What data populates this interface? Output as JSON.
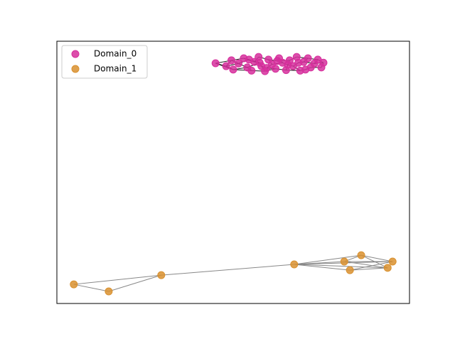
{
  "chart_data": {
    "type": "network",
    "xlim": [
      0,
      1
    ],
    "ylim": [
      0,
      1
    ],
    "legend": "upper left",
    "series": [
      {
        "name": "Domain_0",
        "color": "#d62f9c",
        "edge_color": "#000000",
        "x": [
          0.45,
          0.48,
          0.495,
          0.5,
          0.515,
          0.53,
          0.54,
          0.552,
          0.56,
          0.572,
          0.58,
          0.59,
          0.6,
          0.61,
          0.62,
          0.63,
          0.64,
          0.65,
          0.66,
          0.67,
          0.68,
          0.69,
          0.7,
          0.712,
          0.72,
          0.73,
          0.74,
          0.75,
          0.756,
          0.545,
          0.595,
          0.655,
          0.705,
          0.625,
          0.575,
          0.685
        ],
        "values": [
          0.916,
          0.905,
          0.927,
          0.892,
          0.915,
          0.935,
          0.9,
          0.888,
          0.921,
          0.94,
          0.905,
          0.886,
          0.93,
          0.912,
          0.895,
          0.935,
          0.918,
          0.89,
          0.927,
          0.905,
          0.94,
          0.888,
          0.921,
          0.935,
          0.9,
          0.915,
          0.93,
          0.9,
          0.918,
          0.93,
          0.898,
          0.91,
          0.892,
          0.925,
          0.918,
          0.918
        ],
        "edges": [
          [
            0,
            1
          ],
          [
            0,
            2
          ],
          [
            0,
            3
          ],
          [
            1,
            2
          ],
          [
            1,
            3
          ],
          [
            1,
            4
          ],
          [
            2,
            4
          ],
          [
            2,
            5
          ],
          [
            3,
            6
          ],
          [
            3,
            7
          ],
          [
            4,
            6
          ],
          [
            4,
            29
          ],
          [
            5,
            29
          ],
          [
            5,
            8
          ],
          [
            6,
            7
          ],
          [
            6,
            34
          ],
          [
            7,
            11
          ],
          [
            8,
            9
          ],
          [
            8,
            34
          ],
          [
            9,
            12
          ],
          [
            10,
            11
          ],
          [
            10,
            30
          ],
          [
            11,
            14
          ],
          [
            12,
            33
          ],
          [
            12,
            13
          ],
          [
            13,
            16
          ],
          [
            14,
            17
          ],
          [
            15,
            16
          ],
          [
            15,
            33
          ],
          [
            16,
            31
          ],
          [
            17,
            21
          ],
          [
            18,
            20
          ],
          [
            18,
            31
          ],
          [
            19,
            35
          ],
          [
            19,
            21
          ],
          [
            20,
            23
          ],
          [
            21,
            32
          ],
          [
            22,
            35
          ],
          [
            22,
            23
          ],
          [
            24,
            27
          ],
          [
            24,
            32
          ],
          [
            25,
            26
          ],
          [
            25,
            28
          ],
          [
            26,
            28
          ],
          [
            27,
            28
          ],
          [
            29,
            34
          ],
          [
            30,
            14
          ],
          [
            31,
            19
          ],
          [
            33,
            18
          ],
          [
            35,
            22
          ],
          [
            23,
            26
          ],
          [
            13,
            30
          ],
          [
            10,
            34
          ],
          [
            17,
            31
          ],
          [
            22,
            25
          ]
        ]
      },
      {
        "name": "Domain_1",
        "color": "#d9912f",
        "edge_color": "#888888",
        "x": [
          0.048,
          0.147,
          0.296,
          0.673,
          0.815,
          0.863,
          0.831,
          0.938,
          0.952
        ],
        "values": [
          0.073,
          0.046,
          0.108,
          0.149,
          0.16,
          0.184,
          0.127,
          0.136,
          0.16
        ],
        "edges": [
          [
            0,
            1
          ],
          [
            1,
            2
          ],
          [
            0,
            2
          ],
          [
            2,
            3
          ],
          [
            3,
            4
          ],
          [
            3,
            5
          ],
          [
            3,
            6
          ],
          [
            3,
            7
          ],
          [
            3,
            8
          ],
          [
            4,
            5
          ],
          [
            4,
            7
          ],
          [
            5,
            8
          ],
          [
            5,
            7
          ],
          [
            6,
            8
          ],
          [
            6,
            7
          ],
          [
            4,
            8
          ]
        ]
      }
    ]
  }
}
